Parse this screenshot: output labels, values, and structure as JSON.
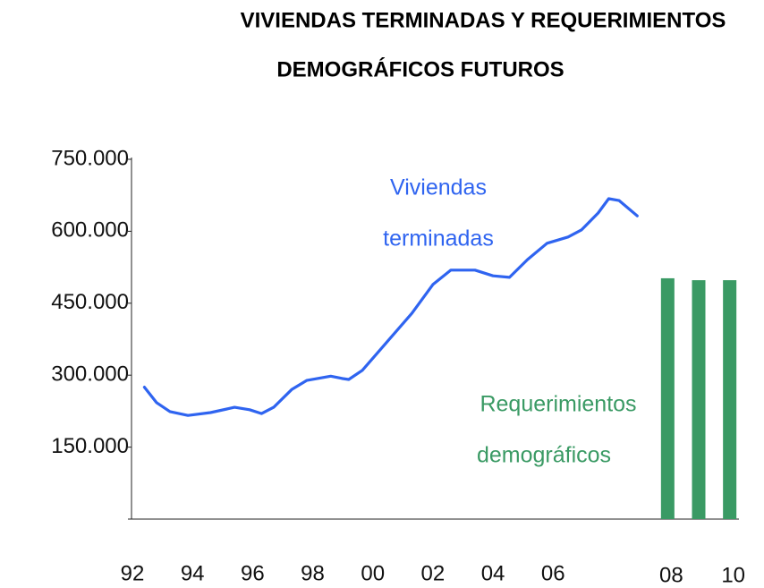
{
  "chart_data": [
    {
      "type": "line",
      "title": [
        "VIVIENDAS TERMINADAS Y REQUERIMIENTOS",
        "DEMOGRÁFICOS FUTUROS"
      ],
      "x": [
        1992.4,
        1992.8,
        1993.25,
        1993.85,
        1994.6,
        1995.4,
        1995.9,
        1996.3,
        1996.7,
        1997.3,
        1997.8,
        1998.6,
        1999.0,
        1999.2,
        1999.65,
        2000.4,
        2001.3,
        2002.0,
        2002.6,
        2003.4,
        2004.0,
        2004.55,
        2005.15,
        2005.8,
        2006.5,
        2006.95,
        2007.5,
        2007.85,
        2008.2,
        2008.8
      ],
      "series": [
        {
          "name": "Viviendas terminadas",
          "color": "#2f64f0",
          "values": [
            275000,
            243000,
            224000,
            216000,
            222000,
            233000,
            228000,
            220000,
            233000,
            270000,
            289000,
            298000,
            293000,
            291000,
            310000,
            364000,
            429000,
            489000,
            519000,
            519000,
            507000,
            504000,
            541000,
            575000,
            588000,
            603000,
            638000,
            668000,
            664000,
            632000
          ]
        }
      ],
      "annotation": [
        "Viviendas",
        "terminadas"
      ],
      "xlim": [
        1992,
        2009
      ],
      "xticks": [
        {
          "value": 1992,
          "label": "92"
        },
        {
          "value": 1994,
          "label": "94"
        },
        {
          "value": 1996,
          "label": "96"
        },
        {
          "value": 1998,
          "label": "98"
        },
        {
          "value": 2000,
          "label": "00"
        },
        {
          "value": 2002,
          "label": "02"
        },
        {
          "value": 2004,
          "label": "04"
        },
        {
          "value": 2006,
          "label": "06"
        }
      ],
      "ylim": [
        0,
        750000
      ],
      "yticks": [
        {
          "value": 150000,
          "label": "150.000"
        },
        {
          "value": 300000,
          "label": "300.000"
        },
        {
          "value": 450000,
          "label": "450.000"
        },
        {
          "value": 600000,
          "label": "600.000"
        },
        {
          "value": 750000,
          "label": "750.000"
        }
      ],
      "grid": false
    },
    {
      "type": "bar",
      "categories": [
        "08",
        null,
        "10"
      ],
      "values": [
        502000,
        498000,
        498000
      ],
      "color": "#3a9a64",
      "annotation": [
        "Requerimientos",
        "demográficos"
      ],
      "ylim": [
        0,
        750000
      ]
    }
  ]
}
